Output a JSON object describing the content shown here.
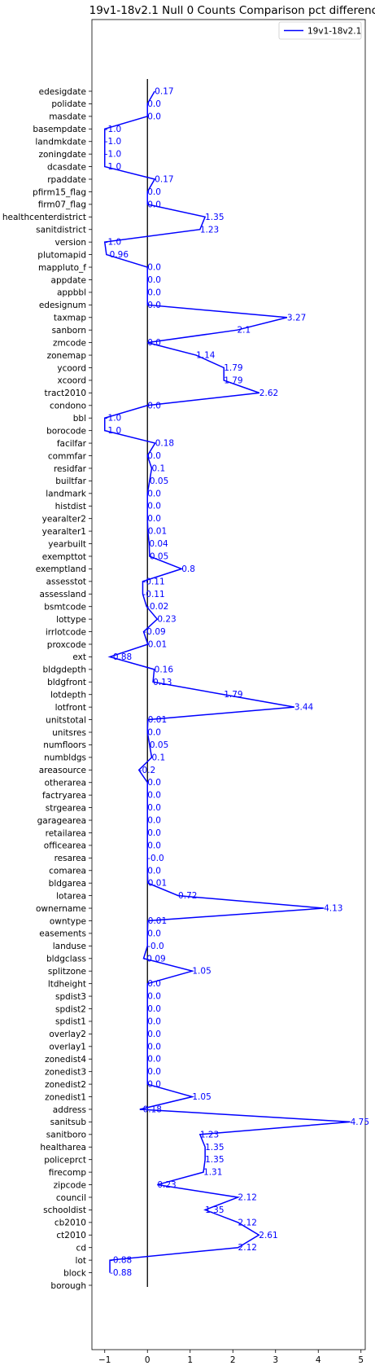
{
  "chart_data": {
    "type": "line",
    "title": "19v1-18v2.1 Null 0 Counts Comparison pct difference",
    "xlabel": "",
    "ylabel": "",
    "xlim": [
      -1.3,
      5.1
    ],
    "xticks": [
      -1,
      0,
      1,
      2,
      3,
      4,
      5
    ],
    "xtick_labels": [
      "−1",
      "0",
      "1",
      "2",
      "3",
      "4",
      "5"
    ],
    "grid": false,
    "legend": {
      "placement": "top-right",
      "entries": [
        "19v1-18v2.1"
      ]
    },
    "zero_line": true,
    "line_color": "#0000ff",
    "label_color": "#0000ff",
    "categories": [
      "edesigdate",
      "polidate",
      "masdate",
      "basempdate",
      "landmkdate",
      "zoningdate",
      "dcasdate",
      "rpaddate",
      "pfirm15_flag",
      "firm07_flag",
      "healthcenterdistrict",
      "sanitdistrict",
      "version",
      "plutomapid",
      "mappluto_f",
      "appdate",
      "appbbl",
      "edesignum",
      "taxmap",
      "sanborn",
      "zmcode",
      "zonemap",
      "ycoord",
      "xcoord",
      "tract2010",
      "condono",
      "bbl",
      "borocode",
      "facilfar",
      "commfar",
      "residfar",
      "builtfar",
      "landmark",
      "histdist",
      "yearalter2",
      "yearalter1",
      "yearbuilt",
      "exempttot",
      "exemptland",
      "assesstot",
      "assessland",
      "bsmtcode",
      "lottype",
      "irrlotcode",
      "proxcode",
      "ext",
      "bldgdepth",
      "bldgfront",
      "lotdepth",
      "lotfront",
      "unitstotal",
      "unitsres",
      "numfloors",
      "numbldgs",
      "areasource",
      "otherarea",
      "factryarea",
      "strgearea",
      "garagearea",
      "retailarea",
      "officearea",
      "resarea",
      "comarea",
      "bldgarea",
      "lotarea",
      "ownername",
      "owntype",
      "easements",
      "landuse",
      "bldgclass",
      "splitzone",
      "ltdheight",
      "spdist3",
      "spdist2",
      "spdist1",
      "overlay2",
      "overlay1",
      "zonedist4",
      "zonedist3",
      "zonedist2",
      "zonedist1",
      "address",
      "sanitsub",
      "sanitboro",
      "healtharea",
      "policeprct",
      "firecomp",
      "zipcode",
      "council",
      "schooldist",
      "cb2010",
      "ct2010",
      "cd",
      "lot",
      "block",
      "borough"
    ],
    "series": [
      {
        "name": "19v1-18v2.1",
        "values": [
          0.17,
          0.0,
          0.0,
          -1.0,
          -1.0,
          -1.0,
          -1.0,
          0.17,
          0.0,
          0.0,
          1.35,
          1.23,
          -1.0,
          -0.96,
          0.0,
          0.0,
          0.0,
          0.0,
          3.27,
          2.1,
          0.0,
          1.14,
          1.79,
          1.79,
          2.62,
          0.0,
          -1.0,
          -1.0,
          0.18,
          0.0,
          0.1,
          0.05,
          0.0,
          0.0,
          0.0,
          0.01,
          0.04,
          0.05,
          0.8,
          -0.11,
          -0.11,
          -0.02,
          0.23,
          -0.09,
          0.01,
          -0.88,
          0.16,
          0.13,
          1.79,
          3.44,
          0.01,
          0.0,
          0.05,
          0.1,
          -0.2,
          0.0,
          0.0,
          0.0,
          0.0,
          0.0,
          0.0,
          -0.0,
          0.0,
          0.01,
          0.72,
          4.13,
          0.01,
          0.0,
          -0.0,
          -0.09,
          1.05,
          0.0,
          0.0,
          0.0,
          0.0,
          0.0,
          0.0,
          0.0,
          0.0,
          0.0,
          1.05,
          -0.18,
          4.75,
          1.23,
          1.35,
          1.35,
          1.31,
          0.23,
          2.12,
          1.35,
          2.12,
          2.61,
          2.12,
          -0.88,
          -0.88,
          null
        ],
        "labels": [
          "0.17",
          "0.0",
          "0.0",
          "-1.0",
          "-1.0",
          "-1.0",
          "-1.0",
          "0.17",
          "0.0",
          "0.0",
          "1.35",
          "1.23",
          "-1.0",
          "-0.96",
          "0.0",
          "0.0",
          "0.0",
          "0.0",
          "3.27",
          "2.1",
          "0.0",
          "1.14",
          "1.79",
          "1.79",
          "2.62",
          "0.0",
          "-1.0",
          "-1.0",
          "0.18",
          "0.0",
          "0.1",
          "0.05",
          "0.0",
          "0.0",
          "0.0",
          "0.01",
          "0.04",
          "0.05",
          "0.8",
          "-0.11",
          "-0.11",
          "-0.02",
          "0.23",
          "-0.09",
          "0.01",
          "-0.88",
          "0.16",
          "0.13",
          "1.79",
          "3.44",
          "0.01",
          "0.0",
          "0.05",
          "0.1",
          "-0.2",
          "0.0",
          "0.0",
          "0.0",
          "0.0",
          "0.0",
          "0.0",
          "-0.0",
          "0.0",
          "0.01",
          "0.72",
          "4.13",
          "0.01",
          "0.0",
          "-0.0",
          "-0.09",
          "1.05",
          "0.0",
          "0.0",
          "0.0",
          "0.0",
          "0.0",
          "0.0",
          "0.0",
          "0.0",
          "0.0",
          "1.05",
          "-0.18",
          "4.75",
          "1.23",
          "1.35",
          "1.35",
          "1.31",
          "0.23",
          "2.12",
          "1.35",
          "2.12",
          "2.61",
          "2.12",
          "-0.88",
          "-0.88",
          ""
        ]
      }
    ]
  }
}
